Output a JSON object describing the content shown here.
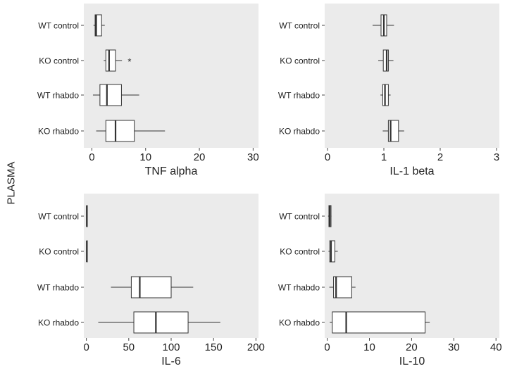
{
  "figure": {
    "side_label": "PLASMA"
  },
  "chart_data": [
    {
      "type": "boxplot",
      "xlabel": "TNF alpha",
      "xlim": [
        -1.5,
        31
      ],
      "xticks": [
        0,
        10,
        20,
        30
      ],
      "categories": [
        "WT control",
        "KO control",
        "WT rhabdo",
        "KO rhabdo"
      ],
      "boxes": [
        {
          "name": "WT control",
          "whisker_low": 0.3,
          "q1": 0.6,
          "median": 0.8,
          "q3": 1.8,
          "whisker_high": 2.4,
          "outliers": []
        },
        {
          "name": "KO control",
          "whisker_low": 2.2,
          "q1": 2.6,
          "median": 3.2,
          "q3": 4.4,
          "whisker_high": 5.6,
          "outliers": [
            7.0
          ]
        },
        {
          "name": "WT rhabdo",
          "whisker_low": 0.2,
          "q1": 1.5,
          "median": 2.8,
          "q3": 5.5,
          "whisker_high": 8.8,
          "outliers": []
        },
        {
          "name": "KO rhabdo",
          "whisker_low": 0.8,
          "q1": 2.6,
          "median": 4.4,
          "q3": 7.9,
          "whisker_high": 13.6,
          "outliers": []
        }
      ]
    },
    {
      "type": "boxplot",
      "xlabel": "IL-1 beta",
      "xlim": [
        -0.05,
        3.05
      ],
      "xticks": [
        0,
        1,
        2,
        3
      ],
      "categories": [
        "WT control",
        "KO control",
        "WT rhabdo",
        "KO rhabdo"
      ],
      "boxes": [
        {
          "name": "WT control",
          "whisker_low": 0.8,
          "q1": 0.95,
          "median": 1.0,
          "q3": 1.05,
          "whisker_high": 1.18,
          "outliers": []
        },
        {
          "name": "KO control",
          "whisker_low": 0.9,
          "q1": 0.99,
          "median": 1.05,
          "q3": 1.08,
          "whisker_high": 1.17,
          "outliers": []
        },
        {
          "name": "WT rhabdo",
          "whisker_low": 0.94,
          "q1": 0.98,
          "median": 1.02,
          "q3": 1.08,
          "whisker_high": 1.12,
          "outliers": []
        },
        {
          "name": "KO rhabdo",
          "whisker_low": 0.98,
          "q1": 1.08,
          "median": 1.12,
          "q3": 1.26,
          "whisker_high": 1.36,
          "outliers": []
        }
      ]
    },
    {
      "type": "boxplot",
      "xlabel": "IL-6",
      "xlim": [
        -3,
        203
      ],
      "xticks": [
        0,
        50,
        100,
        150,
        200
      ],
      "categories": [
        "WT control",
        "KO control",
        "WT rhabdo",
        "KO rhabdo"
      ],
      "boxes": [
        {
          "name": "WT control",
          "whisker_low": 0.2,
          "q1": 0.3,
          "median": 0.5,
          "q3": 0.8,
          "whisker_high": 1.0,
          "outliers": []
        },
        {
          "name": "KO control",
          "whisker_low": 0.2,
          "q1": 0.3,
          "median": 0.5,
          "q3": 0.8,
          "whisker_high": 1.0,
          "outliers": []
        },
        {
          "name": "WT rhabdo",
          "whisker_low": 29,
          "q1": 53,
          "median": 63,
          "q3": 100,
          "whisker_high": 126,
          "outliers": []
        },
        {
          "name": "KO rhabdo",
          "whisker_low": 14,
          "q1": 56,
          "median": 82,
          "q3": 120,
          "whisker_high": 158,
          "outliers": []
        }
      ]
    },
    {
      "type": "boxplot",
      "xlabel": "IL-10",
      "xlim": [
        -0.6,
        40.8
      ],
      "xticks": [
        0,
        10,
        20,
        30,
        40
      ],
      "categories": [
        "WT control",
        "KO control",
        "WT rhabdo",
        "KO rhabdo"
      ],
      "boxes": [
        {
          "name": "WT control",
          "whisker_low": 0.2,
          "q1": 0.4,
          "median": 0.6,
          "q3": 0.9,
          "whisker_high": 1.0,
          "outliers": []
        },
        {
          "name": "KO control",
          "whisker_low": 0.3,
          "q1": 0.6,
          "median": 0.9,
          "q3": 1.8,
          "whisker_high": 2.5,
          "outliers": []
        },
        {
          "name": "WT rhabdo",
          "whisker_low": 0.5,
          "q1": 1.5,
          "median": 2.1,
          "q3": 5.8,
          "whisker_high": 6.7,
          "outliers": []
        },
        {
          "name": "KO rhabdo",
          "whisker_low": 0.6,
          "q1": 1.2,
          "median": 4.5,
          "q3": 23.2,
          "whisker_high": 24.3,
          "outliers": []
        }
      ]
    }
  ]
}
